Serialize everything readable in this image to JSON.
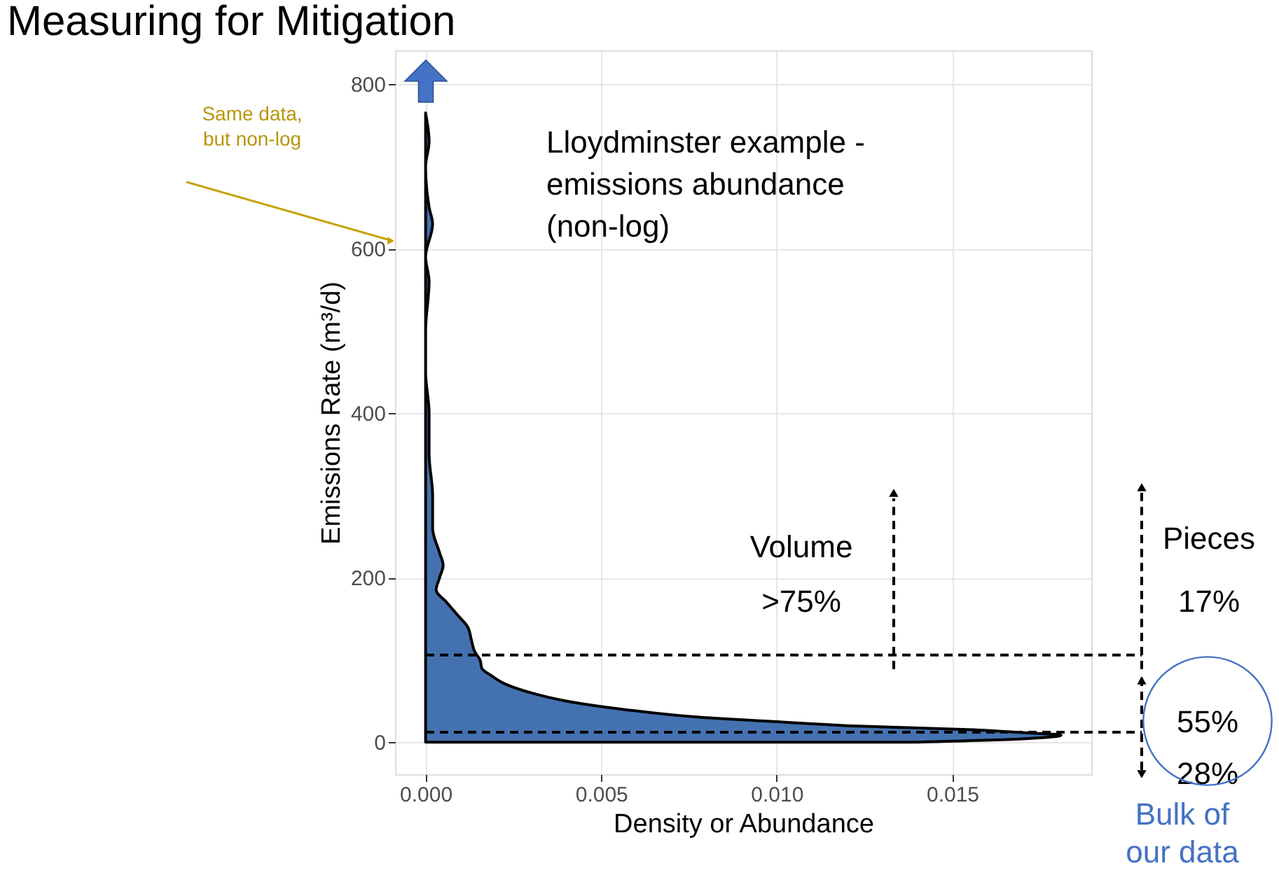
{
  "chart_data": {
    "type": "area",
    "orientation": "horizontal",
    "title": "Measuring for Mitigation",
    "xlabel": "Density or Abundance",
    "ylabel": "Emissions Rate (m³/d)",
    "x": [
      0,
      4,
      8.5,
      12,
      15,
      20,
      25,
      30,
      40,
      50,
      60,
      70,
      80,
      90,
      100,
      110,
      125,
      140,
      155,
      170,
      185,
      200,
      215,
      230,
      260,
      300,
      350,
      400,
      450,
      500,
      560,
      590,
      630,
      650,
      700,
      730,
      765
    ],
    "values": [
      0.014,
      0.017,
      0.0181,
      0.0168,
      0.0156,
      0.012,
      0.0099,
      0.0079,
      0.0056,
      0.004,
      0.003,
      0.0023,
      0.0019,
      0.0016,
      0.00155,
      0.0014,
      0.0013,
      0.0012,
      0.0009,
      0.0006,
      0.0003,
      0.0004,
      0.0005,
      0.0004,
      0.0002,
      0.0002,
      0.0001,
      0.0001,
      0,
      0,
      0.0001,
      0,
      0.0002,
      0.0001,
      0,
      0.0001,
      0
    ],
    "color": "#4472b0",
    "xlim": [
      -0.00087,
      0.01896
    ],
    "xticks": [
      {
        "value": 0,
        "label": "0.000"
      },
      0.005,
      {
        "value": 0.01,
        "label": "0.010"
      },
      0.015
    ],
    "ylim": [
      -39,
      841
    ],
    "yticks": [
      0,
      200,
      400,
      600,
      800
    ],
    "grid": true,
    "ref_lines": [
      {
        "axis": "y",
        "value": 106,
        "label": null,
        "line_style": "dashed",
        "color": "#000000"
      },
      {
        "axis": "y",
        "value": 12,
        "label": null,
        "line_style": "dashed",
        "color": "#000000"
      }
    ],
    "annotations": [
      "Same data,\nbut non-log",
      "Lloydminster example -\nemissions abundance\n(non-log)",
      "Volume\n>75%",
      "Pieces\n17%",
      "55%\n28%",
      "Bulk of\nour data"
    ]
  }
}
